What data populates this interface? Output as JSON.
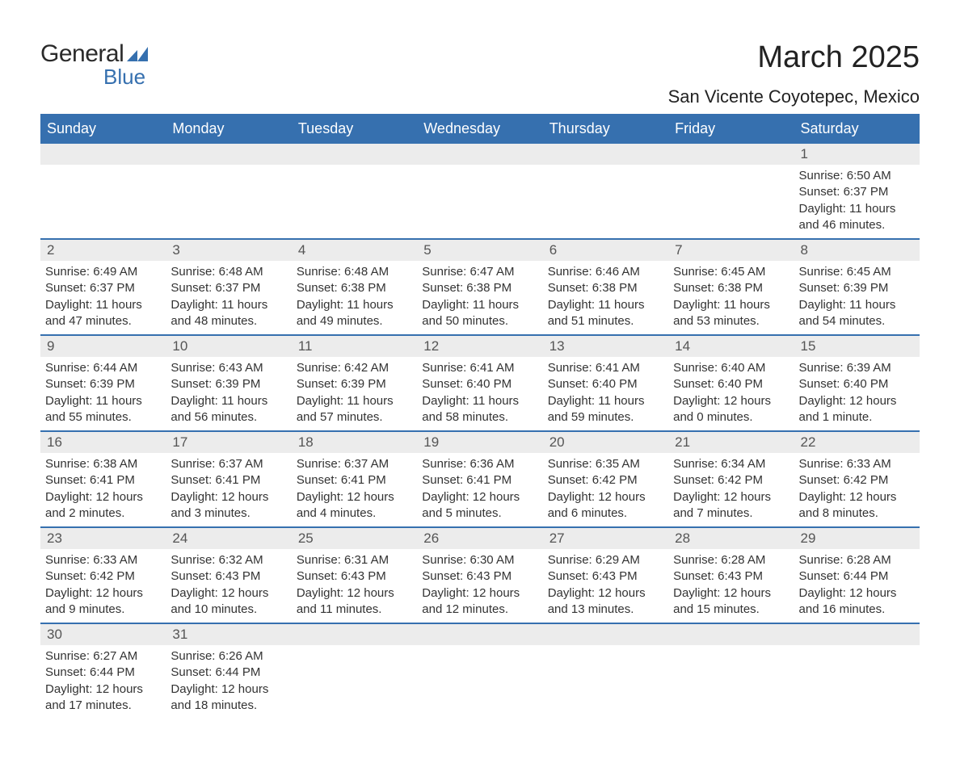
{
  "logo": {
    "general": "General",
    "blue": "Blue",
    "icon_color": "#3670af"
  },
  "header": {
    "month_title": "March 2025",
    "location": "San Vicente Coyotepec, Mexico"
  },
  "calendar": {
    "header_bg": "#3670af",
    "header_fg": "#ffffff",
    "daynum_bg": "#ececec",
    "divider_color": "#3670af",
    "day_headers": [
      "Sunday",
      "Monday",
      "Tuesday",
      "Wednesday",
      "Thursday",
      "Friday",
      "Saturday"
    ],
    "weeks": [
      [
        null,
        null,
        null,
        null,
        null,
        null,
        {
          "n": "1",
          "sunrise": "Sunrise: 6:50 AM",
          "sunset": "Sunset: 6:37 PM",
          "daylight": "Daylight: 11 hours and 46 minutes."
        }
      ],
      [
        {
          "n": "2",
          "sunrise": "Sunrise: 6:49 AM",
          "sunset": "Sunset: 6:37 PM",
          "daylight": "Daylight: 11 hours and 47 minutes."
        },
        {
          "n": "3",
          "sunrise": "Sunrise: 6:48 AM",
          "sunset": "Sunset: 6:37 PM",
          "daylight": "Daylight: 11 hours and 48 minutes."
        },
        {
          "n": "4",
          "sunrise": "Sunrise: 6:48 AM",
          "sunset": "Sunset: 6:38 PM",
          "daylight": "Daylight: 11 hours and 49 minutes."
        },
        {
          "n": "5",
          "sunrise": "Sunrise: 6:47 AM",
          "sunset": "Sunset: 6:38 PM",
          "daylight": "Daylight: 11 hours and 50 minutes."
        },
        {
          "n": "6",
          "sunrise": "Sunrise: 6:46 AM",
          "sunset": "Sunset: 6:38 PM",
          "daylight": "Daylight: 11 hours and 51 minutes."
        },
        {
          "n": "7",
          "sunrise": "Sunrise: 6:45 AM",
          "sunset": "Sunset: 6:38 PM",
          "daylight": "Daylight: 11 hours and 53 minutes."
        },
        {
          "n": "8",
          "sunrise": "Sunrise: 6:45 AM",
          "sunset": "Sunset: 6:39 PM",
          "daylight": "Daylight: 11 hours and 54 minutes."
        }
      ],
      [
        {
          "n": "9",
          "sunrise": "Sunrise: 6:44 AM",
          "sunset": "Sunset: 6:39 PM",
          "daylight": "Daylight: 11 hours and 55 minutes."
        },
        {
          "n": "10",
          "sunrise": "Sunrise: 6:43 AM",
          "sunset": "Sunset: 6:39 PM",
          "daylight": "Daylight: 11 hours and 56 minutes."
        },
        {
          "n": "11",
          "sunrise": "Sunrise: 6:42 AM",
          "sunset": "Sunset: 6:39 PM",
          "daylight": "Daylight: 11 hours and 57 minutes."
        },
        {
          "n": "12",
          "sunrise": "Sunrise: 6:41 AM",
          "sunset": "Sunset: 6:40 PM",
          "daylight": "Daylight: 11 hours and 58 minutes."
        },
        {
          "n": "13",
          "sunrise": "Sunrise: 6:41 AM",
          "sunset": "Sunset: 6:40 PM",
          "daylight": "Daylight: 11 hours and 59 minutes."
        },
        {
          "n": "14",
          "sunrise": "Sunrise: 6:40 AM",
          "sunset": "Sunset: 6:40 PM",
          "daylight": "Daylight: 12 hours and 0 minutes."
        },
        {
          "n": "15",
          "sunrise": "Sunrise: 6:39 AM",
          "sunset": "Sunset: 6:40 PM",
          "daylight": "Daylight: 12 hours and 1 minute."
        }
      ],
      [
        {
          "n": "16",
          "sunrise": "Sunrise: 6:38 AM",
          "sunset": "Sunset: 6:41 PM",
          "daylight": "Daylight: 12 hours and 2 minutes."
        },
        {
          "n": "17",
          "sunrise": "Sunrise: 6:37 AM",
          "sunset": "Sunset: 6:41 PM",
          "daylight": "Daylight: 12 hours and 3 minutes."
        },
        {
          "n": "18",
          "sunrise": "Sunrise: 6:37 AM",
          "sunset": "Sunset: 6:41 PM",
          "daylight": "Daylight: 12 hours and 4 minutes."
        },
        {
          "n": "19",
          "sunrise": "Sunrise: 6:36 AM",
          "sunset": "Sunset: 6:41 PM",
          "daylight": "Daylight: 12 hours and 5 minutes."
        },
        {
          "n": "20",
          "sunrise": "Sunrise: 6:35 AM",
          "sunset": "Sunset: 6:42 PM",
          "daylight": "Daylight: 12 hours and 6 minutes."
        },
        {
          "n": "21",
          "sunrise": "Sunrise: 6:34 AM",
          "sunset": "Sunset: 6:42 PM",
          "daylight": "Daylight: 12 hours and 7 minutes."
        },
        {
          "n": "22",
          "sunrise": "Sunrise: 6:33 AM",
          "sunset": "Sunset: 6:42 PM",
          "daylight": "Daylight: 12 hours and 8 minutes."
        }
      ],
      [
        {
          "n": "23",
          "sunrise": "Sunrise: 6:33 AM",
          "sunset": "Sunset: 6:42 PM",
          "daylight": "Daylight: 12 hours and 9 minutes."
        },
        {
          "n": "24",
          "sunrise": "Sunrise: 6:32 AM",
          "sunset": "Sunset: 6:43 PM",
          "daylight": "Daylight: 12 hours and 10 minutes."
        },
        {
          "n": "25",
          "sunrise": "Sunrise: 6:31 AM",
          "sunset": "Sunset: 6:43 PM",
          "daylight": "Daylight: 12 hours and 11 minutes."
        },
        {
          "n": "26",
          "sunrise": "Sunrise: 6:30 AM",
          "sunset": "Sunset: 6:43 PM",
          "daylight": "Daylight: 12 hours and 12 minutes."
        },
        {
          "n": "27",
          "sunrise": "Sunrise: 6:29 AM",
          "sunset": "Sunset: 6:43 PM",
          "daylight": "Daylight: 12 hours and 13 minutes."
        },
        {
          "n": "28",
          "sunrise": "Sunrise: 6:28 AM",
          "sunset": "Sunset: 6:43 PM",
          "daylight": "Daylight: 12 hours and 15 minutes."
        },
        {
          "n": "29",
          "sunrise": "Sunrise: 6:28 AM",
          "sunset": "Sunset: 6:44 PM",
          "daylight": "Daylight: 12 hours and 16 minutes."
        }
      ],
      [
        {
          "n": "30",
          "sunrise": "Sunrise: 6:27 AM",
          "sunset": "Sunset: 6:44 PM",
          "daylight": "Daylight: 12 hours and 17 minutes."
        },
        {
          "n": "31",
          "sunrise": "Sunrise: 6:26 AM",
          "sunset": "Sunset: 6:44 PM",
          "daylight": "Daylight: 12 hours and 18 minutes."
        },
        null,
        null,
        null,
        null,
        null
      ]
    ]
  }
}
